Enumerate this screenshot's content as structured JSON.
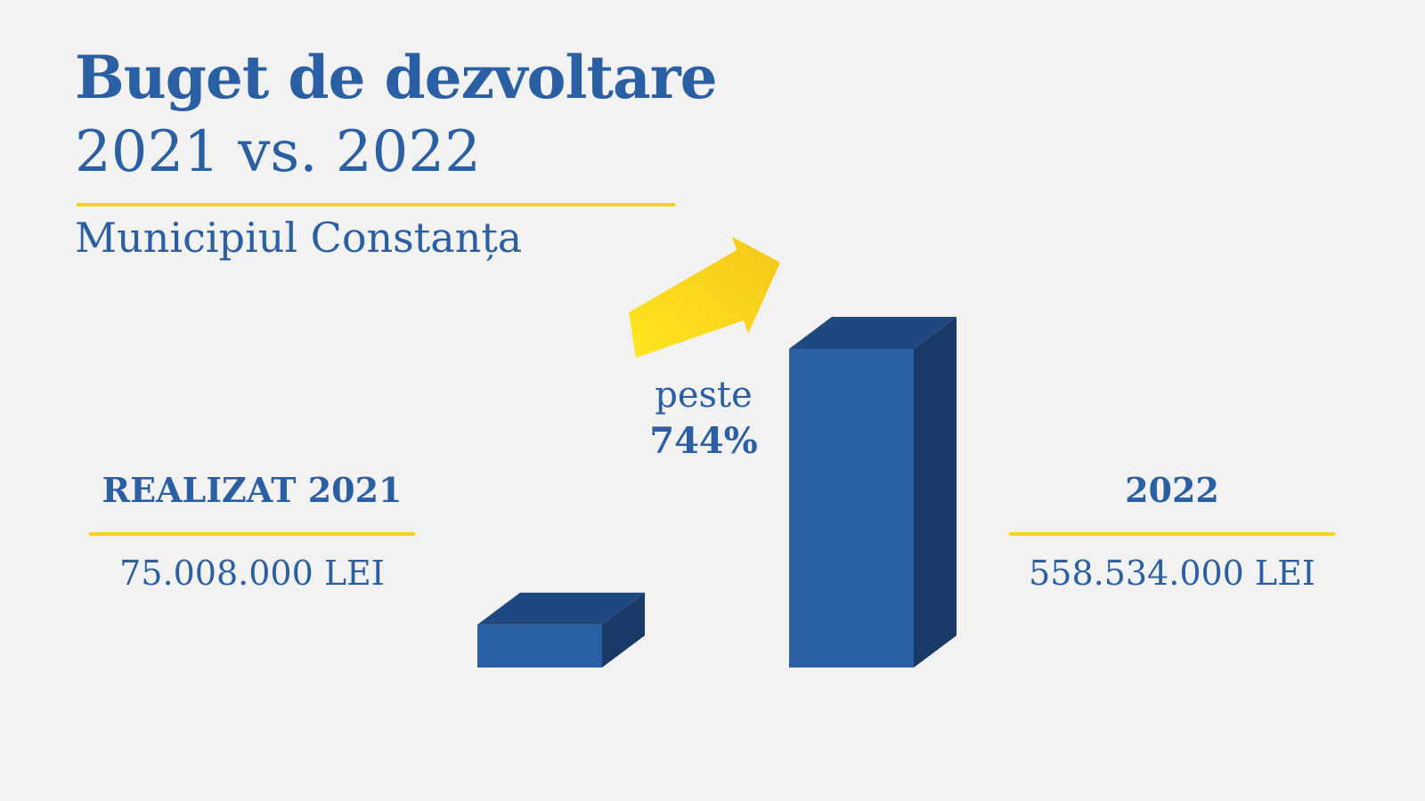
{
  "title": "Buget de dezvoltare",
  "subtitle": "2021 vs. 2022",
  "place": "Municipiul Constanța",
  "change": {
    "prefix": "peste",
    "value": "744%"
  },
  "colors": {
    "title": "#2a5fa3",
    "bar_front": "#2a5fa3",
    "bar_top": "#1f4780",
    "bar_side": "#193a66",
    "accent_rule": "#f5d21e",
    "arrow_start": "#ffe620",
    "arrow_end": "#f5c61a",
    "background": "#f2f2f2"
  },
  "chart_data": {
    "type": "bar",
    "categories": [
      "REALIZAT 2021",
      "2022"
    ],
    "values": [
      75008000,
      558534000
    ],
    "value_labels": [
      "75.008.000 LEI",
      "558.534.000 LEI"
    ],
    "title": "Buget de dezvoltare",
    "xlabel": "",
    "ylabel": "",
    "ylim": [
      0,
      558534000
    ],
    "grid": false,
    "legend": "none"
  },
  "icons": {
    "growth_arrow": "arrow-up-right-icon"
  }
}
